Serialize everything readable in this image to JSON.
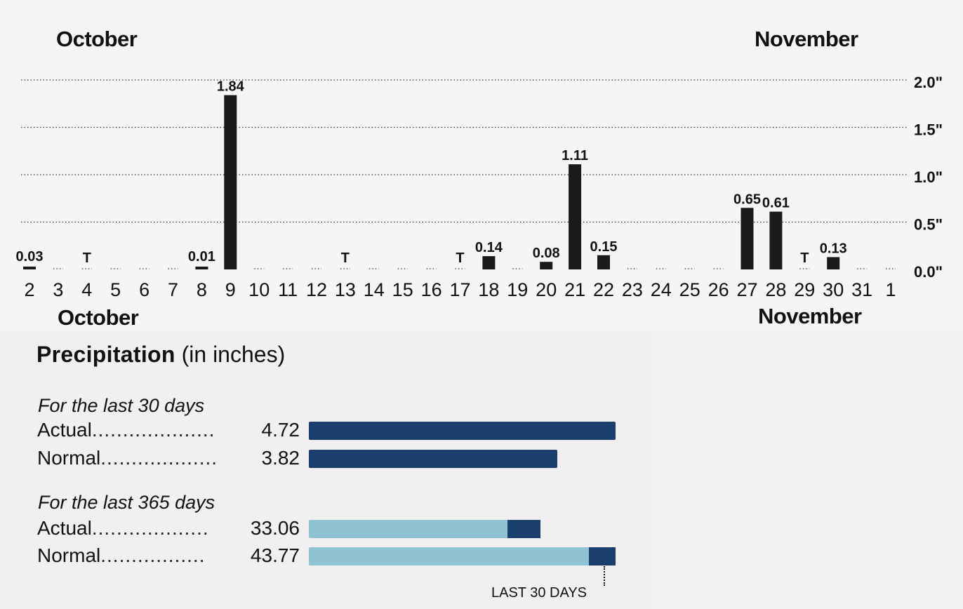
{
  "chart_data": [
    {
      "type": "bar",
      "top_month_left": "October",
      "top_month_right": "November",
      "bottom_month_left": "October",
      "bottom_month_right": "November",
      "y_ticks": [
        "2.0\"",
        "1.5\"",
        "1.0\"",
        "0.5\"",
        "0.0\""
      ],
      "y_tick_values": [
        2.0,
        1.5,
        1.0,
        0.5,
        0.0
      ],
      "ylim": [
        0,
        2.0
      ],
      "categories": [
        "2",
        "3",
        "4",
        "5",
        "6",
        "7",
        "8",
        "9",
        "10",
        "11",
        "12",
        "13",
        "14",
        "15",
        "16",
        "17",
        "18",
        "19",
        "20",
        "21",
        "22",
        "23",
        "24",
        "25",
        "26",
        "27",
        "28",
        "29",
        "30",
        "31",
        "1"
      ],
      "values": [
        0.03,
        0,
        0,
        0,
        0,
        0,
        0.01,
        1.84,
        0,
        0,
        0,
        0,
        0,
        0,
        0,
        0,
        0.14,
        0,
        0.08,
        1.11,
        0.15,
        0,
        0,
        0,
        0,
        0.65,
        0.61,
        0,
        0.13,
        0,
        0
      ],
      "data_labels": [
        "0.03",
        "",
        "T",
        "",
        "",
        "",
        "0.01",
        "1.84",
        "",
        "",
        "",
        "T",
        "",
        "",
        "",
        "T",
        "0.14",
        "",
        "0.08",
        "1.11",
        "0.15",
        "",
        "",
        "",
        "",
        "0.65",
        "0.61",
        "T",
        "0.13",
        "",
        ""
      ],
      "grid": true,
      "bar_color": "#1a1a1a"
    },
    {
      "type": "bar",
      "title": "Precipitation",
      "subtitle": "(in inches)",
      "groups": [
        {
          "label": "For the last 30 days",
          "rows": [
            {
              "name": "Actual",
              "dots": "....................",
              "value_text": "4.72",
              "value": 4.72
            },
            {
              "name": "Normal",
              "dots": "...................",
              "value_text": "3.82",
              "value": 3.82
            }
          ]
        },
        {
          "label": "For the last 365 days",
          "rows": [
            {
              "name": "Actual",
              "dots": "...................",
              "value_text": "33.06",
              "value": 33.06
            },
            {
              "name": "Normal",
              "dots": ".................",
              "value_text": "43.77",
              "value": 43.77
            }
          ]
        }
      ],
      "annotation": "LAST 30 DAYS",
      "colors": {
        "recent": "#1b3f6d",
        "year": "#8fc3d3"
      }
    }
  ]
}
